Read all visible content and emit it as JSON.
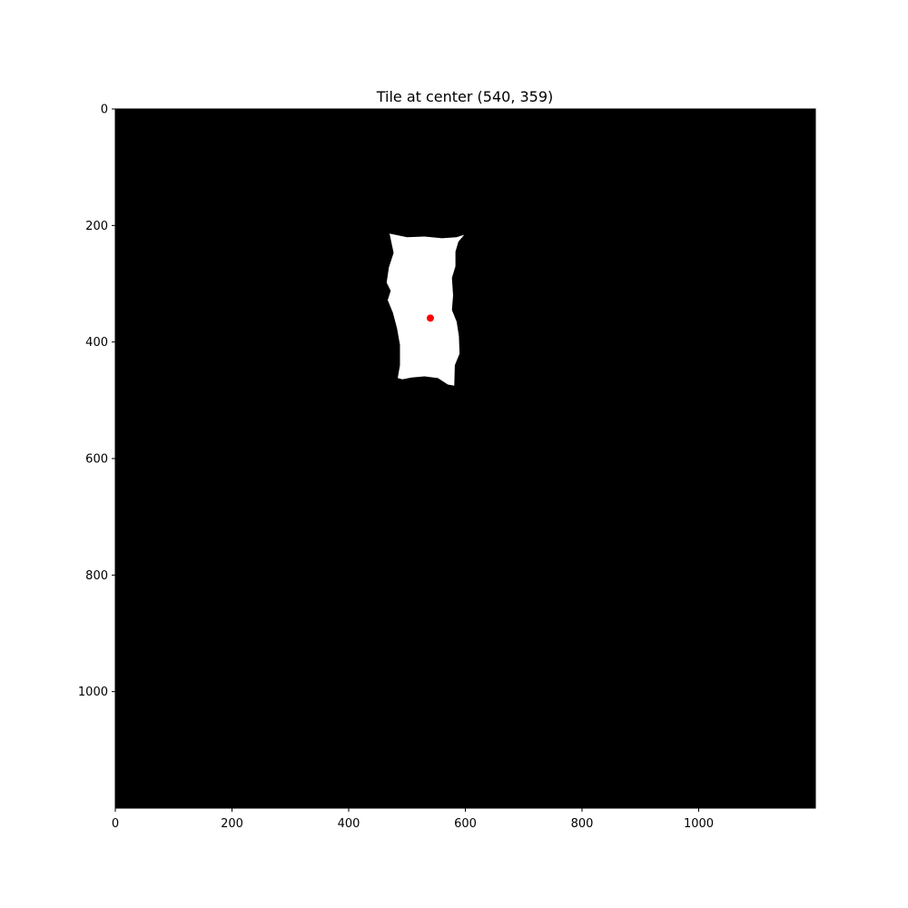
{
  "chart_data": {
    "type": "image",
    "title": "Tile at center (540, 359)",
    "xlim": [
      0,
      1200
    ],
    "ylim": [
      1200,
      0
    ],
    "y_inverted": true,
    "x_ticks": [
      0,
      200,
      400,
      600,
      800,
      1000
    ],
    "y_ticks": [
      0,
      200,
      400,
      600,
      800,
      1000
    ],
    "background_color": "#000000",
    "tile_color": "#ffffff",
    "tile_outline": [
      [
        470,
        214
      ],
      [
        500,
        220
      ],
      [
        530,
        219
      ],
      [
        560,
        222
      ],
      [
        585,
        220
      ],
      [
        598,
        216
      ],
      [
        588,
        228
      ],
      [
        583,
        245
      ],
      [
        583,
        270
      ],
      [
        577,
        290
      ],
      [
        579,
        320
      ],
      [
        577,
        345
      ],
      [
        585,
        365
      ],
      [
        589,
        390
      ],
      [
        590,
        420
      ],
      [
        582,
        440
      ],
      [
        581,
        475
      ],
      [
        570,
        473
      ],
      [
        553,
        462
      ],
      [
        530,
        459
      ],
      [
        508,
        461
      ],
      [
        492,
        464
      ],
      [
        484,
        462
      ],
      [
        488,
        440
      ],
      [
        488,
        405
      ],
      [
        483,
        377
      ],
      [
        476,
        350
      ],
      [
        467,
        328
      ],
      [
        472,
        312
      ],
      [
        465,
        298
      ],
      [
        469,
        272
      ],
      [
        477,
        247
      ]
    ],
    "center_point": {
      "x": 540,
      "y": 359,
      "color": "#ff0000"
    }
  }
}
